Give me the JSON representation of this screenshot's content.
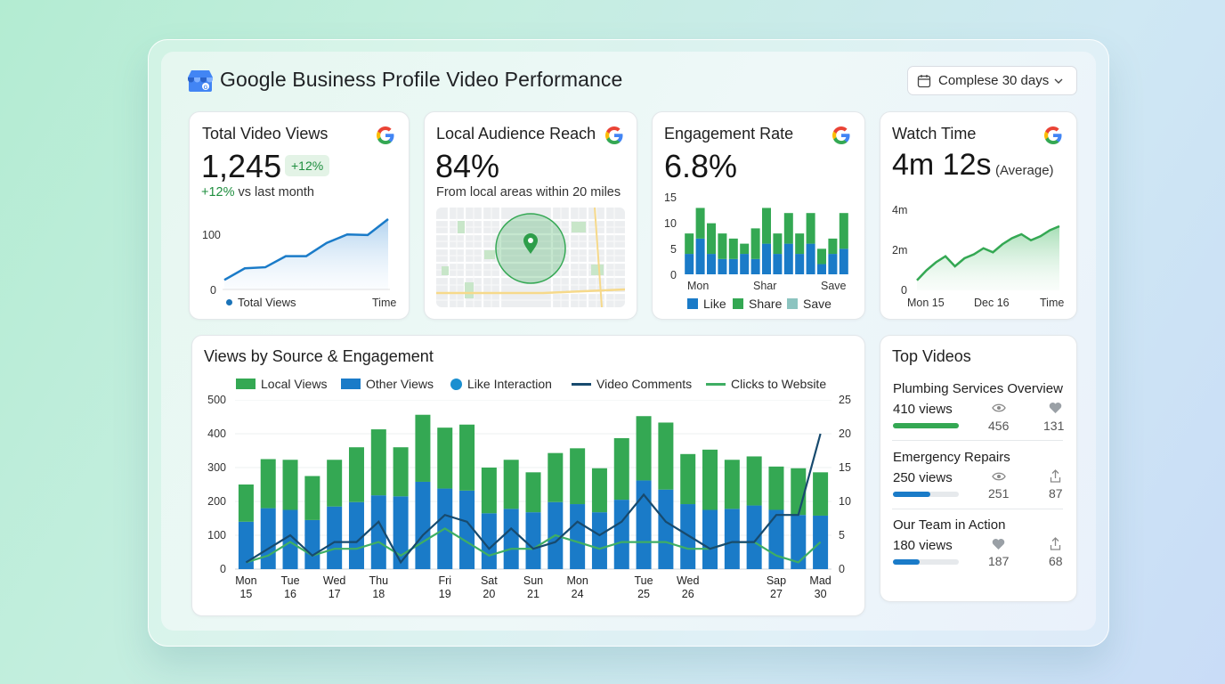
{
  "header": {
    "title": "Google Business Profile Video Performance",
    "date_range": "Complese 30 days"
  },
  "colors": {
    "green": "#34a853",
    "blue": "#1a7bc8",
    "dark_blue": "#174a6e",
    "teal": "#8cc4c0"
  },
  "cards": {
    "views": {
      "title": "Total Video Views",
      "value": "1,245",
      "badge": "+12%",
      "delta": "+12%",
      "delta_text": "vs last month",
      "y_ticks": [
        "100",
        "0"
      ],
      "legend": "Total Views",
      "x_label": "Time"
    },
    "reach": {
      "title": "Local Audience Reach",
      "value": "84%",
      "subtitle": "From local areas within 20 miles"
    },
    "engagement": {
      "title": "Engagement Rate",
      "value": "6.8%",
      "y_ticks": [
        "15",
        "10",
        "5",
        "0"
      ],
      "x_ticks": [
        "Mon",
        "Shar",
        "Save"
      ],
      "legend": [
        "Like",
        "Share",
        "Save"
      ]
    },
    "watch": {
      "title": "Watch Time",
      "value": "4m 12s",
      "value_note": "(Average)",
      "y_ticks": [
        "4m",
        "2m",
        "0"
      ],
      "x_ticks": [
        "Mon 15",
        "Dec 16",
        "Time"
      ]
    }
  },
  "main_chart": {
    "title": "Views by Source & Engagement",
    "legend": [
      "Local Views",
      "Other Views",
      "Like Interaction",
      "Video Comments",
      "Clicks to Website"
    ],
    "y_left": [
      "500",
      "400",
      "300",
      "200",
      "100",
      "0"
    ],
    "y_right": [
      "25",
      "20",
      "15",
      "10",
      "5",
      "0"
    ]
  },
  "chart_data": [
    {
      "type": "line",
      "title": "Total Video Views",
      "series": [
        {
          "name": "Total Views",
          "values": [
            18,
            40,
            42,
            63,
            63,
            88,
            104,
            103,
            133
          ]
        }
      ],
      "ylim": [
        0,
        160
      ]
    },
    {
      "type": "bar",
      "title": "Engagement Rate",
      "categories": [
        "Mon",
        "",
        "",
        "",
        "",
        "",
        "",
        "",
        "",
        "Shar",
        "",
        "",
        "",
        "",
        "Save"
      ],
      "series": [
        {
          "name": "Like",
          "values": [
            4,
            7,
            4,
            3,
            3,
            4,
            3,
            6,
            4,
            6,
            4,
            6,
            2,
            4,
            5
          ]
        },
        {
          "name": "Share",
          "values": [
            4,
            6,
            6,
            5,
            4,
            2,
            6,
            7,
            4,
            6,
            4,
            6,
            3,
            3,
            7
          ]
        }
      ],
      "ylim": [
        0,
        15
      ]
    },
    {
      "type": "line",
      "title": "Watch Time",
      "series": [
        {
          "name": "Watch Time",
          "values": [
            0.5,
            1.0,
            1.4,
            1.7,
            1.2,
            1.6,
            1.8,
            2.1,
            1.9,
            2.3,
            2.6,
            2.8,
            2.5,
            2.7,
            3.0,
            3.2
          ]
        }
      ],
      "ylim": [
        0,
        4
      ]
    },
    {
      "type": "bar",
      "title": "Views by Source & Engagement",
      "categories": [
        "Mon 15",
        "",
        "Tue 16",
        "",
        "Wed 17",
        "",
        "Thu 18",
        "",
        "",
        "Fri 19",
        "",
        "Sat 20",
        "",
        "Sun 21",
        "",
        "Mon 24",
        "",
        "",
        "Tue 25",
        "",
        "Wed 26",
        "",
        "",
        "",
        "Sap 27",
        "",
        "Mad 30"
      ],
      "series": [
        {
          "name": "Other Views",
          "values": [
            140,
            180,
            175,
            145,
            185,
            198,
            218,
            215,
            258,
            238,
            232,
            165,
            178,
            168,
            198,
            192,
            168,
            205,
            262,
            235,
            192,
            175,
            178,
            188,
            175,
            160,
            158
          ]
        },
        {
          "name": "Local Views",
          "values": [
            110,
            145,
            148,
            130,
            138,
            162,
            195,
            145,
            198,
            180,
            195,
            135,
            145,
            118,
            145,
            165,
            130,
            182,
            190,
            198,
            148,
            178,
            145,
            145,
            128,
            138,
            128
          ]
        },
        {
          "name": "Video Comments",
          "values": [
            1,
            3,
            5,
            2,
            4,
            4,
            7,
            1,
            5,
            8,
            7,
            3,
            6,
            3,
            4,
            7,
            5,
            7,
            11,
            7,
            5,
            3,
            4,
            4,
            8,
            8,
            20
          ]
        },
        {
          "name": "Clicks to Website",
          "values": [
            1,
            2,
            4,
            2,
            3,
            3,
            4,
            2,
            4,
            6,
            4,
            2,
            3,
            3,
            5,
            4,
            3,
            4,
            4,
            4,
            3,
            3,
            4,
            4,
            2,
            1,
            4
          ]
        }
      ],
      "ylim": [
        0,
        500
      ],
      "y2lim": [
        0,
        25
      ]
    }
  ],
  "top_videos": {
    "title": "Top Videos",
    "items": [
      {
        "name": "Plumbing Services Overview",
        "views": "410 views",
        "stat1": "456",
        "stat2": "131",
        "progress": 1.0,
        "color": "#34a853"
      },
      {
        "name": "Emergency Repairs",
        "views": "250 views",
        "stat1": "251",
        "stat2": "87",
        "progress": 0.57,
        "color": "#1a7bc8"
      },
      {
        "name": "Our Team in Action",
        "views": "180 views",
        "stat1": "187",
        "stat2": "68",
        "progress": 0.4,
        "color": "#1a7bc8"
      }
    ]
  }
}
